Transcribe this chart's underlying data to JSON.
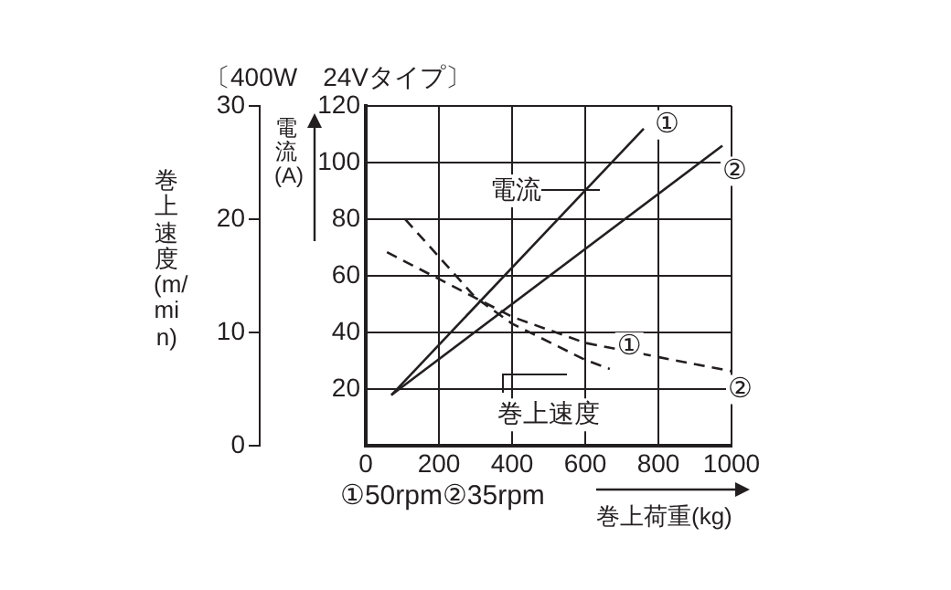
{
  "chart_data": {
    "type": "line",
    "title": "〔400W　24Vタイプ〕",
    "xlabel": "巻上荷重(kg)",
    "ylabel": "電流(A)",
    "y2label": "巻上速度(m/min)",
    "annotations": [
      "電流",
      "巻上速度",
      "①50rpm②35rpm"
    ],
    "xlim": [
      0,
      1000
    ],
    "xticks": [
      0,
      200,
      400,
      600,
      800,
      1000
    ],
    "ylim": [
      0,
      120
    ],
    "yticks": [
      20,
      40,
      60,
      80,
      100,
      120
    ],
    "y2lim": [
      0,
      30
    ],
    "y2ticks": [
      0,
      10,
      20,
      30
    ],
    "grid": true,
    "legend": false,
    "marker": "none",
    "series": [
      {
        "name": "①",
        "color": "#231f20",
        "x": [
          70,
          760
        ],
        "values": [
          18,
          112
        ],
        "line_style": "solid"
      },
      {
        "name": "②",
        "color": "#231f20",
        "x": [
          70,
          975
        ],
        "values": [
          18,
          106
        ],
        "line_style": "solid"
      },
      {
        "name": "①",
        "color": "#231f20",
        "axis": "y2",
        "x": [
          108,
          300,
          400,
          600,
          667
        ],
        "values": [
          20,
          13.1,
          10.8,
          7.6,
          6.8
        ],
        "line_style": "dashed"
      },
      {
        "name": "②",
        "color": "#231f20",
        "axis": "y2",
        "x": [
          58,
          400,
          600,
          1000
        ],
        "values": [
          17.1,
          11.4,
          9.1,
          6.6
        ],
        "line_style": "dashed"
      }
    ]
  }
}
